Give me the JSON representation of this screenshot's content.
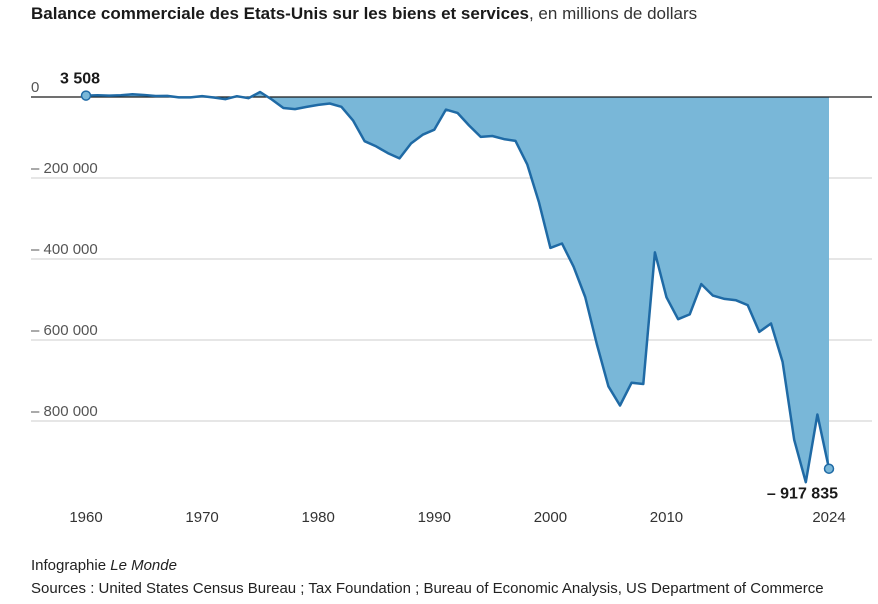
{
  "header": {
    "title": "Balance commerciale des Etats-Unis sur les biens et services",
    "subtitle": ", en millions de dollars"
  },
  "footer": {
    "credit_prefix": "Infographie ",
    "credit_publication": "Le Monde",
    "sources": "Sources : United States Census Bureau ; Tax Foundation ; Bureau of Economic Analysis, US Department of Commerce"
  },
  "chart_data": {
    "type": "area",
    "title": "Balance commerciale des Etats-Unis sur les biens et services",
    "subtitle": "en millions de dollars",
    "xlabel": "",
    "ylabel": "",
    "xlim": [
      1960,
      2024
    ],
    "ylim": [
      -960000,
      0
    ],
    "grid": true,
    "colors": {
      "fill": "#79b7d8",
      "line": "#1f6aa5",
      "zero_line": "#1a1a1a",
      "grid": "#cccccc"
    },
    "x_ticks": [
      {
        "value": 1960,
        "label": "1960"
      },
      {
        "value": 1970,
        "label": "1970"
      },
      {
        "value": 1980,
        "label": "1980"
      },
      {
        "value": 1990,
        "label": "1990"
      },
      {
        "value": 2000,
        "label": "2000"
      },
      {
        "value": 2010,
        "label": "2010"
      },
      {
        "value": 2024,
        "label": "2024"
      }
    ],
    "y_ticks": [
      {
        "value": 0,
        "label": "0"
      },
      {
        "value": -200000,
        "label": "– 200 000"
      },
      {
        "value": -400000,
        "label": "– 400 000"
      },
      {
        "value": -600000,
        "label": "– 600 000"
      },
      {
        "value": -800000,
        "label": "– 800 000"
      }
    ],
    "annotations": [
      {
        "x": 1960,
        "y": 3508,
        "label": "3 508"
      },
      {
        "x": 2024,
        "y": -917835,
        "label": "– 917 835"
      }
    ],
    "series": [
      {
        "x": [
          1960,
          1961,
          1962,
          1963,
          1964,
          1965,
          1966,
          1967,
          1968,
          1969,
          1970,
          1971,
          1972,
          1973,
          1974,
          1975,
          1976,
          1977,
          1978,
          1979,
          1980,
          1981,
          1982,
          1983,
          1984,
          1985,
          1986,
          1987,
          1988,
          1989,
          1990,
          1991,
          1992,
          1993,
          1994,
          1995,
          1996,
          1997,
          1998,
          1999,
          2000,
          2001,
          2002,
          2003,
          2004,
          2005,
          2006,
          2007,
          2008,
          2009,
          2010,
          2011,
          2012,
          2013,
          2014,
          2015,
          2016,
          2017,
          2018,
          2019,
          2020,
          2021,
          2022,
          2023,
          2024
        ],
        "values": [
          3508,
          4195,
          3370,
          4210,
          6831,
          4951,
          2585,
          2604,
          -1000,
          -1000,
          2254,
          -1302,
          -5443,
          1900,
          -3041,
          12404,
          -6082,
          -27246,
          -29763,
          -24565,
          -19407,
          -16172,
          -24156,
          -57767,
          -109073,
          -121880,
          -138538,
          -151684,
          -114566,
          -93141,
          -80864,
          -31135,
          -39212,
          -70311,
          -98493,
          -96384,
          -104065,
          -108273,
          -166140,
          -258617,
          -372517,
          -361771,
          -418955,
          -493890,
          -609883,
          -714245,
          -761716,
          -705375,
          -708726,
          -383774,
          -494658,
          -548625,
          -536773,
          -461876,
          -490336,
          -498524,
          -502040,
          -513837,
          -579940,
          -559380,
          -654000,
          -846354,
          -951183,
          -784000,
          -917835
        ]
      }
    ]
  }
}
